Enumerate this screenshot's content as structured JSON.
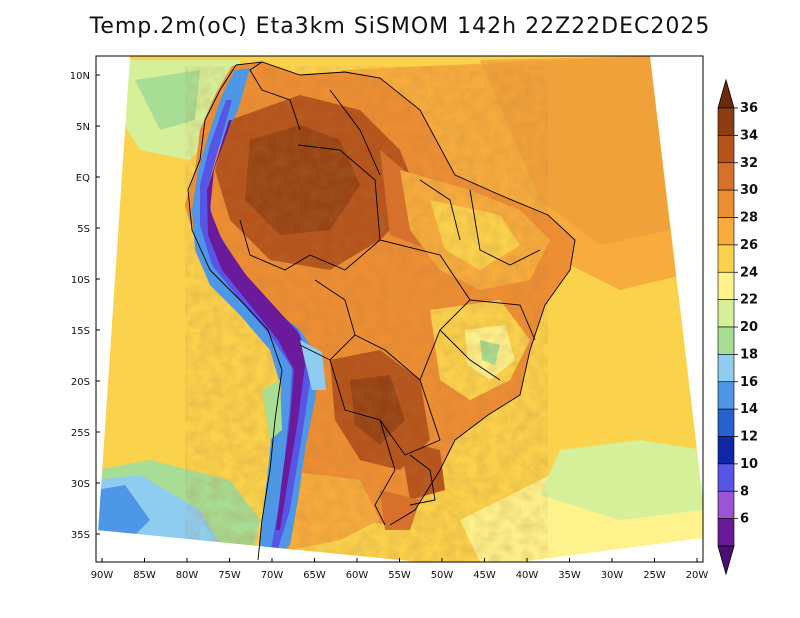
{
  "title": "Temp.2m(oC) Eta3km SiSMOM 142h 22Z22DEC2025",
  "lat_labels": [
    "10N",
    "5N",
    "EQ",
    "5S",
    "10S",
    "15S",
    "20S",
    "25S",
    "30S",
    "35S"
  ],
  "lon_labels": [
    "90W",
    "85W",
    "80W",
    "75W",
    "70W",
    "65W",
    "60W",
    "55W",
    "50W",
    "45W",
    "40W",
    "35W",
    "30W",
    "25W",
    "20W"
  ],
  "colorbar": {
    "labels": [
      "36",
      "34",
      "32",
      "30",
      "28",
      "26",
      "24",
      "22",
      "20",
      "18",
      "16",
      "14",
      "12",
      "10",
      "8",
      "6"
    ],
    "colors": [
      "#6b2a0e",
      "#8e3d13",
      "#b5531b",
      "#d9702a",
      "#ee8e33",
      "#f7ac3d",
      "#fbd24c",
      "#fef28c",
      "#d6f09a",
      "#a7dd94",
      "#8fcdf0",
      "#4d97e6",
      "#2760cf",
      "#1027a8",
      "#5655e6",
      "#9a55d4",
      "#6a1a9a",
      "#4b0f73"
    ]
  }
}
